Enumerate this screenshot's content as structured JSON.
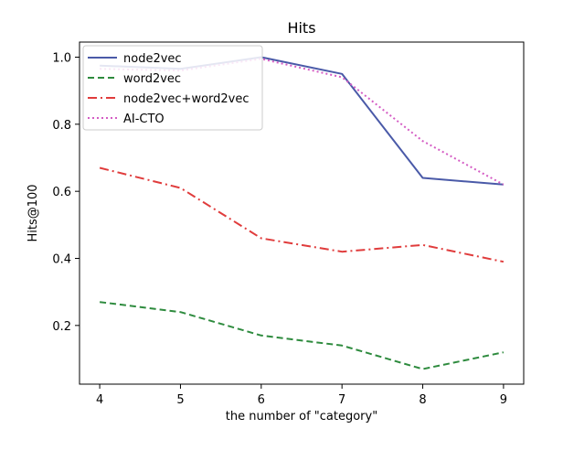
{
  "chart_data": {
    "type": "line",
    "title": "Hits",
    "xlabel": "the number of \"category\"",
    "ylabel": "Hits@100",
    "x": [
      4,
      5,
      6,
      7,
      8,
      9
    ],
    "xlim": [
      3.75,
      9.25
    ],
    "ylim": [
      0.025,
      1.045
    ],
    "xticks": [
      "4",
      "5",
      "6",
      "7",
      "8",
      "9"
    ],
    "yticks": [
      {
        "value": 0.2,
        "label": "0.2"
      },
      {
        "value": 0.4,
        "label": "0.4"
      },
      {
        "value": 0.6,
        "label": "0.6"
      },
      {
        "value": 0.8,
        "label": "0.8"
      },
      {
        "value": 1.0,
        "label": "1.0"
      }
    ],
    "grid": false,
    "legend_position": "top-left",
    "series": [
      {
        "name": "node2vec",
        "style": "solid",
        "color": "#4a5aa8",
        "values": [
          0.975,
          0.965,
          1.0,
          0.95,
          0.64,
          0.62
        ]
      },
      {
        "name": "word2vec",
        "style": "dashed",
        "color": "#2e8b3e",
        "values": [
          0.27,
          0.24,
          0.17,
          0.14,
          0.07,
          0.12
        ]
      },
      {
        "name": "node2vec+word2vec",
        "style": "dashdot",
        "color": "#e03c3c",
        "values": [
          0.67,
          0.61,
          0.46,
          0.42,
          0.44,
          0.39
        ]
      },
      {
        "name": "AI-CTO",
        "style": "dotted",
        "color": "#d45cc4",
        "values": [
          0.965,
          0.96,
          0.995,
          0.94,
          0.75,
          0.62
        ]
      }
    ]
  }
}
